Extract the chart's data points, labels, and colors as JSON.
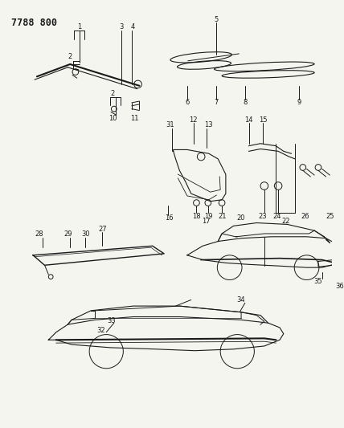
{
  "title": "7788 800",
  "bg_color": "#f5f5f0",
  "line_color": "#1a1a1a",
  "title_fontsize": 8.5,
  "label_fontsize": 6,
  "figsize": [
    4.28,
    5.33
  ],
  "dpi": 100
}
